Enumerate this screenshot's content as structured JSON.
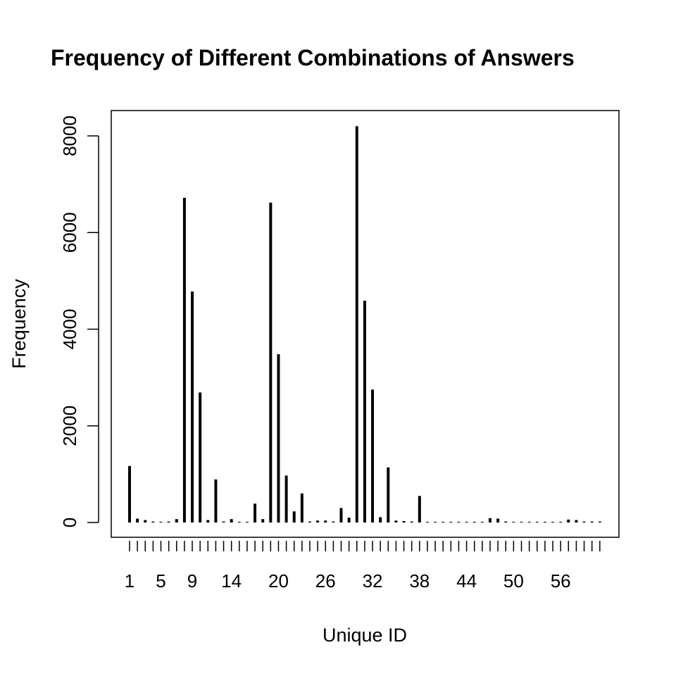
{
  "chart_data": {
    "type": "bar",
    "title": "Frequency of Different Combinations of Answers",
    "xlabel": "Unique ID",
    "ylabel": "Frequency",
    "x": [
      1,
      2,
      3,
      4,
      5,
      6,
      7,
      8,
      9,
      10,
      11,
      12,
      13,
      14,
      15,
      16,
      17,
      18,
      19,
      20,
      21,
      22,
      23,
      24,
      25,
      26,
      27,
      28,
      29,
      30,
      31,
      32,
      33,
      34,
      35,
      36,
      37,
      38,
      39,
      40,
      41,
      42,
      43,
      44,
      45,
      46,
      47,
      48,
      49,
      50,
      51,
      52,
      53,
      54,
      55,
      56,
      57,
      58,
      59,
      60,
      61
    ],
    "values": [
      1170,
      80,
      50,
      20,
      15,
      20,
      70,
      6720,
      4780,
      2690,
      50,
      890,
      20,
      70,
      15,
      15,
      390,
      70,
      6620,
      3480,
      970,
      230,
      600,
      20,
      40,
      40,
      20,
      300,
      100,
      8200,
      4590,
      2750,
      110,
      1140,
      40,
      30,
      20,
      550,
      15,
      15,
      15,
      15,
      15,
      15,
      15,
      15,
      90,
      80,
      20,
      15,
      15,
      15,
      15,
      15,
      15,
      15,
      60,
      50,
      20,
      20,
      20
    ],
    "x_tick_labels": [
      "1",
      "5",
      "9",
      "14",
      "20",
      "26",
      "32",
      "38",
      "44",
      "50",
      "56"
    ],
    "x_tick_label_positions": [
      1,
      5,
      9,
      14,
      20,
      26,
      32,
      38,
      44,
      50,
      56
    ],
    "y_ticks": [
      "0",
      "2000",
      "4000",
      "6000",
      "8000"
    ],
    "y_tick_values": [
      0,
      2000,
      4000,
      6000,
      8000
    ],
    "ylim": [
      0,
      8500
    ],
    "grid": false,
    "legend": "none",
    "bar_color": "#000000"
  }
}
